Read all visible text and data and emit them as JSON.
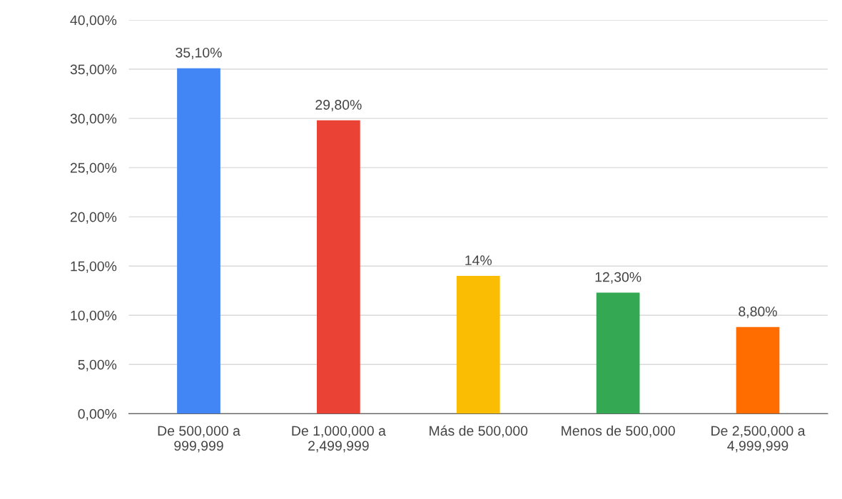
{
  "chart_data": {
    "type": "bar",
    "categories": [
      "De 500,000 a\n999,999",
      "De 1,000,000 a\n2,499,999",
      "Más de 500,000",
      "Menos de 500,000",
      "De 2,500,000 a\n4,999,999"
    ],
    "values": [
      35.1,
      29.8,
      14,
      12.3,
      8.8
    ],
    "colors": [
      "#4285f4",
      "#ea4335",
      "#fbbc04",
      "#34a853",
      "#ff6d01"
    ],
    "value_labels": [
      "35,10%",
      "29,80%",
      "14%",
      "12,30%",
      "8,80%"
    ],
    "ylim": [
      0,
      40
    ],
    "yticks": [
      {
        "value": 0,
        "label": "0,00%"
      },
      {
        "value": 5,
        "label": "5,00%"
      },
      {
        "value": 10,
        "label": "10,00%"
      },
      {
        "value": 15,
        "label": "15,00%"
      },
      {
        "value": 20,
        "label": "20,00%"
      },
      {
        "value": 25,
        "label": "25,00%"
      },
      {
        "value": 30,
        "label": "30,00%"
      },
      {
        "value": 35,
        "label": "35,00%"
      },
      {
        "value": 40,
        "label": "40,00%"
      }
    ],
    "grid": "y",
    "legend": false
  }
}
